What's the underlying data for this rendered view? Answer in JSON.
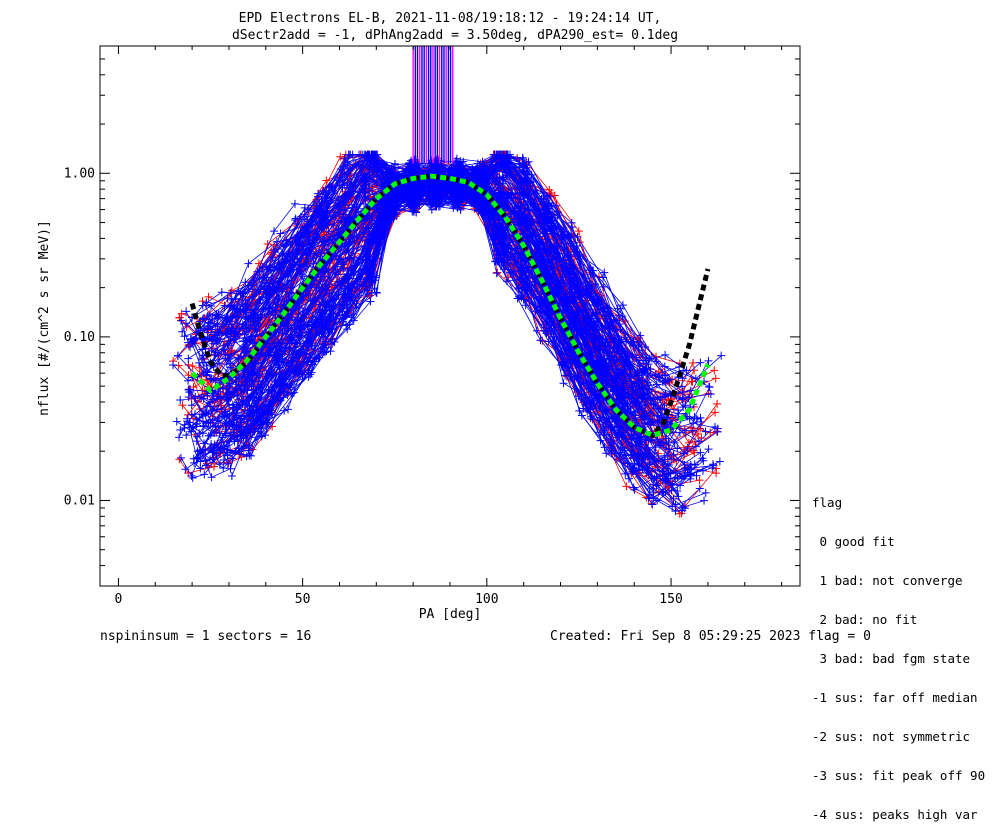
{
  "title_line1": "EPD Electrons EL-B, 2021-11-08/19:18:12 - 19:24:14 UT,",
  "title_line2": "dSectr2add = -1, dPhAng2add = 3.50deg, dPA290_est=   0.1deg",
  "footer_left": "nspininsum =  1  sectors = 16",
  "footer_right": "Created: Fri Sep  8 05:29:25 2023   flag = 0",
  "legend": {
    "title": "flag",
    "items": [
      " 0 good fit",
      " 1 bad: not converge",
      " 2 bad: no fit",
      " 3 bad: bad fgm state",
      "-1 sus: far off median",
      "-2 sus: not symmetric",
      "-3 sus: fit peak off 90",
      "-4 sus: peaks high var"
    ]
  },
  "colors": {
    "blue": "#0000ff",
    "red": "#ff0000",
    "green": "#00ff00",
    "black": "#000000",
    "magenta": "#ff00ff"
  },
  "chart_data": {
    "type": "line",
    "xlabel": "PA [deg]",
    "ylabel": "nflux [#/(cm^2 s sr MeV)]",
    "xlim": [
      -5,
      185
    ],
    "ylim": [
      0.003,
      6
    ],
    "ylog": true,
    "x_ticks": [
      0,
      50,
      100,
      150
    ],
    "x_ticklabels": [
      "0",
      "50",
      "100",
      "150"
    ],
    "y_ticks": [
      0.01,
      0.1,
      1.0
    ],
    "y_ticklabels": [
      "0.01",
      "0.10",
      "1.00"
    ],
    "grid": false,
    "green_fit": {
      "name": "",
      "x": [
        20,
        25,
        30,
        35,
        40,
        45,
        50,
        55,
        60,
        65,
        70,
        75,
        80,
        85,
        90,
        95,
        100,
        105,
        110,
        115,
        120,
        125,
        130,
        135,
        140,
        145,
        150,
        155,
        160
      ],
      "y": [
        0.06,
        0.047,
        0.056,
        0.072,
        0.1,
        0.14,
        0.2,
        0.28,
        0.38,
        0.52,
        0.7,
        0.86,
        0.93,
        0.96,
        0.93,
        0.88,
        0.74,
        0.54,
        0.36,
        0.22,
        0.13,
        0.08,
        0.052,
        0.036,
        0.028,
        0.025,
        0.027,
        0.036,
        0.068
      ]
    },
    "black_fit": {
      "name": "",
      "x": [
        20,
        22,
        25,
        28,
        30,
        35,
        40,
        45,
        50,
        55,
        60,
        65,
        70,
        75,
        80,
        85,
        90,
        95,
        100,
        105,
        110,
        115,
        120,
        125,
        130,
        135,
        140,
        145,
        148,
        150,
        152,
        155,
        158,
        160
      ],
      "y": [
        0.16,
        0.11,
        0.07,
        0.058,
        0.058,
        0.07,
        0.1,
        0.14,
        0.2,
        0.28,
        0.38,
        0.52,
        0.7,
        0.86,
        0.93,
        0.96,
        0.93,
        0.88,
        0.74,
        0.54,
        0.36,
        0.22,
        0.13,
        0.08,
        0.052,
        0.036,
        0.028,
        0.025,
        0.03,
        0.04,
        0.055,
        0.09,
        0.17,
        0.26
      ]
    },
    "spectra_blue_count": 150,
    "spectra_red_count": 70,
    "spectra_x": [
      20,
      23,
      28,
      33,
      38,
      44,
      50,
      56,
      62,
      68,
      74,
      80,
      86,
      92,
      98,
      104,
      110,
      116,
      122,
      128,
      134,
      140,
      146,
      152,
      158
    ],
    "spectra_base_y": [
      0.05,
      0.045,
      0.05,
      0.06,
      0.08,
      0.12,
      0.18,
      0.27,
      0.4,
      0.58,
      0.78,
      0.85,
      0.86,
      0.85,
      0.82,
      0.66,
      0.45,
      0.28,
      0.16,
      0.09,
      0.055,
      0.036,
      0.027,
      0.025,
      0.03
    ],
    "saturated_band": {
      "x": [
        80,
        91
      ],
      "y_from": 1.15,
      "y_to": 6
    }
  }
}
